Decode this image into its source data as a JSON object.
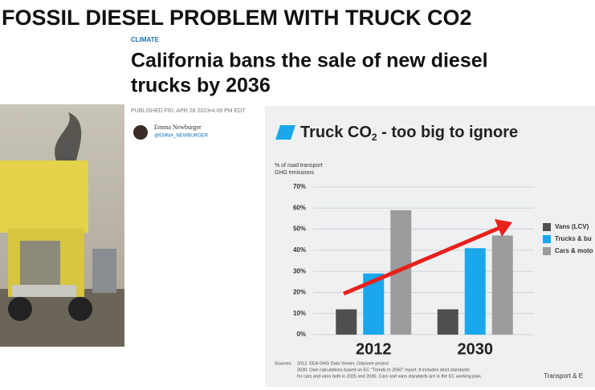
{
  "heading": "FOSSIL DIESEL PROBLEM WITH TRUCK CO2",
  "article": {
    "section": "CLIMATE",
    "headline_lines": [
      "California bans the sale of new diesel",
      "trucks by 2036"
    ],
    "published": "PUBLISHED FRI, APR 28 2023•4:09 PM EDT",
    "author": "Emma Newburger",
    "handle": "@EMMA_NEWBURGER"
  },
  "chart_data": {
    "type": "bar",
    "title": "Truck CO",
    "title_subscript": "2",
    "title_rest": " - too big to ignore",
    "y_label_lines": [
      "% of road transport",
      "GHG emissions"
    ],
    "categories": [
      "2012",
      "2030"
    ],
    "series": [
      {
        "name": "Vans (LCV)",
        "color": "#4d4f51",
        "values": [
          12,
          12
        ]
      },
      {
        "name": "Trucks & bu",
        "color": "#1aa7ec",
        "values": [
          29,
          41
        ]
      },
      {
        "name": "Cars & moto",
        "color": "#9a9c9e",
        "values": [
          59,
          47
        ]
      }
    ],
    "ylim": [
      0,
      70
    ],
    "yticks": [
      {
        "value": 0,
        "label": "0%"
      },
      {
        "value": 10,
        "label": "10%"
      },
      {
        "value": 20,
        "label": "20%"
      },
      {
        "value": 30,
        "label": "30%"
      },
      {
        "value": 40,
        "label": "40%"
      },
      {
        "value": 50,
        "label": "50%"
      },
      {
        "value": 60,
        "label": "60%"
      },
      {
        "value": 70,
        "label": "70%"
      }
    ],
    "grid": true,
    "sources_label": "Sources:",
    "sources": [
      "2012: EEA GHG Data Viewer, Odyssee project",
      "2030: Own calculations based on EC \"Trends to 2050\" report. It includes strict standards",
      "for cars and vans both in 2025 and 2030. Cars and vans standards are in the EC working plan."
    ],
    "credit": "Transport & E"
  }
}
